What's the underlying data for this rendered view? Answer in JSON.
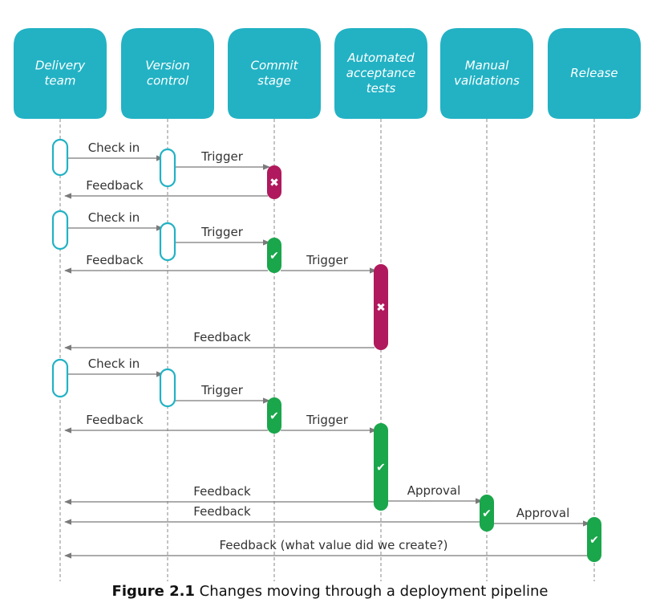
{
  "lanes": [
    {
      "id": "delivery",
      "lines": [
        "Delivery",
        "team"
      ]
    },
    {
      "id": "version",
      "lines": [
        "Version",
        "control"
      ]
    },
    {
      "id": "commit",
      "lines": [
        "Commit",
        "stage"
      ]
    },
    {
      "id": "acceptance",
      "lines": [
        "Automated",
        "acceptance",
        "tests"
      ]
    },
    {
      "id": "manual",
      "lines": [
        "Manual",
        "validations"
      ]
    },
    {
      "id": "release",
      "lines": [
        "Release"
      ]
    }
  ],
  "messages": [
    {
      "from": "delivery",
      "to": "version",
      "label": "Check in"
    },
    {
      "from": "version",
      "to": "commit",
      "label": "Trigger"
    },
    {
      "from": "commit",
      "to": "delivery",
      "label": "Feedback"
    },
    {
      "from": "delivery",
      "to": "version",
      "label": "Check in"
    },
    {
      "from": "version",
      "to": "commit",
      "label": "Trigger"
    },
    {
      "from": "commit",
      "to": "delivery",
      "label": "Feedback"
    },
    {
      "from": "commit",
      "to": "acceptance",
      "label": "Trigger"
    },
    {
      "from": "acceptance",
      "to": "delivery",
      "label": "Feedback"
    },
    {
      "from": "delivery",
      "to": "version",
      "label": "Check in"
    },
    {
      "from": "version",
      "to": "commit",
      "label": "Trigger"
    },
    {
      "from": "commit",
      "to": "delivery",
      "label": "Feedback"
    },
    {
      "from": "commit",
      "to": "acceptance",
      "label": "Trigger"
    },
    {
      "from": "acceptance",
      "to": "delivery",
      "label": "Feedback"
    },
    {
      "from": "acceptance",
      "to": "manual",
      "label": "Approval"
    },
    {
      "from": "manual",
      "to": "delivery",
      "label": "Feedback"
    },
    {
      "from": "manual",
      "to": "release",
      "label": "Approval"
    },
    {
      "from": "release",
      "to": "delivery",
      "label": "Feedback (what value did we create?)"
    }
  ],
  "activations": [
    {
      "lane": "delivery",
      "status": "open"
    },
    {
      "lane": "version",
      "status": "open"
    },
    {
      "lane": "commit",
      "status": "fail"
    },
    {
      "lane": "delivery",
      "status": "open"
    },
    {
      "lane": "version",
      "status": "open"
    },
    {
      "lane": "commit",
      "status": "pass"
    },
    {
      "lane": "acceptance",
      "status": "fail"
    },
    {
      "lane": "delivery",
      "status": "open"
    },
    {
      "lane": "version",
      "status": "open"
    },
    {
      "lane": "commit",
      "status": "pass"
    },
    {
      "lane": "acceptance",
      "status": "pass"
    },
    {
      "lane": "manual",
      "status": "pass"
    },
    {
      "lane": "release",
      "status": "pass"
    }
  ],
  "icons": {
    "pass": "✔",
    "fail": "✖"
  },
  "colors": {
    "header": "#22b2c4",
    "fail": "#b0195d",
    "pass": "#1aa64b",
    "arrow": "#7a7a7a"
  },
  "caption": {
    "prefix": "Figure 2.1",
    "text": " Changes moving through a deployment pipeline"
  }
}
